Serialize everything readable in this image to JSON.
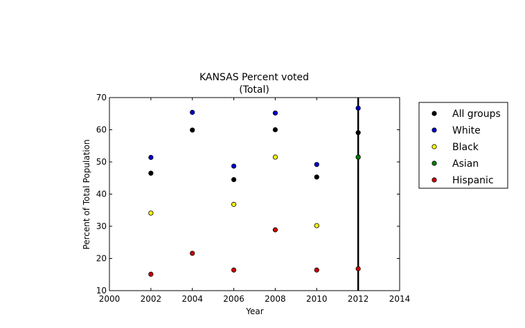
{
  "chart_data": {
    "type": "scatter",
    "title": "KANSAS Percent voted",
    "subtitle": "(Total)",
    "xlabel": "Year",
    "ylabel": "Percent of Total Population",
    "xlim": [
      2000,
      2014
    ],
    "ylim": [
      10,
      70
    ],
    "xticks": [
      2000,
      2002,
      2004,
      2006,
      2008,
      2010,
      2012,
      2014
    ],
    "yticks": [
      10,
      20,
      30,
      40,
      50,
      60,
      70
    ],
    "grid": false,
    "legend_position": "outside-right",
    "vertical_line": {
      "x": 2012,
      "color": "#000000"
    },
    "series": [
      {
        "name": "All groups",
        "color": "#000000",
        "x": [
          2002,
          2004,
          2006,
          2008,
          2010,
          2012
        ],
        "y": [
          46.5,
          59.9,
          44.5,
          60,
          45.3,
          59.1
        ]
      },
      {
        "name": "White",
        "color": "#0000cc",
        "x": [
          2002,
          2004,
          2006,
          2008,
          2010,
          2012
        ],
        "y": [
          51.4,
          65.4,
          48.7,
          65.2,
          49.2,
          66.7
        ]
      },
      {
        "name": "Black",
        "color": "#ffff00",
        "x": [
          2002,
          2006,
          2008,
          2010,
          2012
        ],
        "y": [
          34.1,
          36.8,
          51.5,
          30.2,
          51.5
        ]
      },
      {
        "name": "Asian",
        "color": "#008000",
        "x": [
          2012
        ],
        "y": [
          51.5
        ]
      },
      {
        "name": "Hispanic",
        "color": "#cc0000",
        "x": [
          2002,
          2004,
          2006,
          2008,
          2010,
          2012
        ],
        "y": [
          15.1,
          21.6,
          16.4,
          28.9,
          16.4,
          16.8
        ]
      }
    ]
  }
}
